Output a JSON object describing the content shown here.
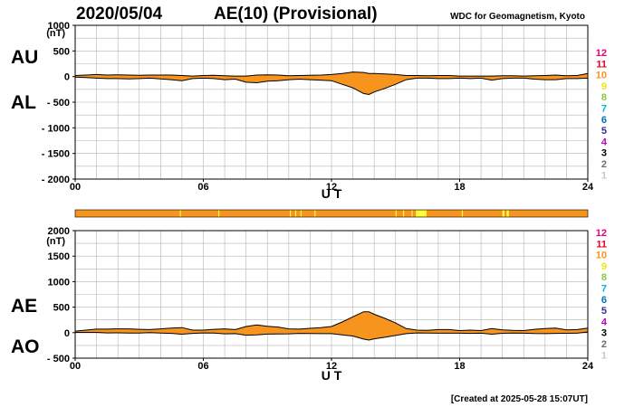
{
  "header": {
    "date": "2020/05/04",
    "title": "AE(10) (Provisional)",
    "source": "WDC for Geomagnetism, Kyoto"
  },
  "footer": {
    "created": "[Created at 2025-05-28 15:07UT]"
  },
  "colors": {
    "fill": "#f7941d",
    "outline": "#000000",
    "grid": "#b4b4b4",
    "axis": "#000000"
  },
  "station_scale": {
    "labels": [
      "12",
      "11",
      "10",
      "9",
      "8",
      "7",
      "6",
      "5",
      "4",
      "3",
      "2",
      "1"
    ],
    "colors": [
      "#e6007e",
      "#e4002b",
      "#f7941d",
      "#f5e400",
      "#8dc63f",
      "#00b4d8",
      "#0070c0",
      "#2e3192",
      "#c000c0",
      "#000000",
      "#6d6d6d",
      "#c8c8c8"
    ]
  },
  "coverage_bar": {
    "base_color": "#f7941d",
    "highlight_color": "#ffff33",
    "highlight_ranges_hours": [
      [
        4.9,
        4.95
      ],
      [
        6.7,
        6.75
      ],
      [
        10.05,
        10.1
      ],
      [
        10.3,
        10.35
      ],
      [
        10.55,
        10.6
      ],
      [
        11.2,
        11.25
      ],
      [
        15.0,
        15.05
      ],
      [
        15.35,
        15.4
      ],
      [
        15.75,
        15.8
      ],
      [
        15.95,
        16.45
      ],
      [
        18.1,
        18.15
      ],
      [
        20.0,
        20.1
      ],
      [
        20.2,
        20.3
      ]
    ]
  },
  "chart_data": [
    {
      "type": "area",
      "panel": "AU/AL",
      "ylabel_unit": "(nT)",
      "side_labels": [
        "AU",
        "AL"
      ],
      "xlabel": "U T",
      "xticks": [
        "00",
        "06",
        "12",
        "18",
        "24"
      ],
      "xlim": [
        0,
        24
      ],
      "ylim": [
        -2000,
        1000
      ],
      "yticks": [
        1000,
        500,
        0,
        -500,
        -1000,
        -1500,
        -2000
      ],
      "ytick_labels": [
        "1000",
        "500",
        "0",
        "- 500",
        "- 1000",
        "- 1500",
        "- 2000"
      ],
      "x": [
        0,
        0.5,
        1,
        1.5,
        2,
        2.5,
        3,
        3.5,
        4,
        4.5,
        5,
        5.5,
        6,
        6.5,
        7,
        7.5,
        8,
        8.5,
        9,
        9.5,
        10,
        10.5,
        11,
        11.5,
        12,
        12.5,
        13,
        13.5,
        13.75,
        14,
        14.5,
        15,
        15.5,
        16,
        16.5,
        17,
        17.5,
        18,
        18.5,
        19,
        19.5,
        20,
        20.5,
        21,
        21.5,
        22,
        22.5,
        23,
        23.5,
        24
      ],
      "series": [
        {
          "name": "AU",
          "values": [
            20,
            30,
            40,
            30,
            35,
            30,
            25,
            30,
            30,
            30,
            20,
            10,
            20,
            25,
            15,
            10,
            10,
            30,
            35,
            30,
            15,
            20,
            25,
            30,
            40,
            60,
            90,
            80,
            60,
            60,
            50,
            40,
            20,
            20,
            15,
            20,
            20,
            10,
            10,
            10,
            10,
            15,
            15,
            10,
            15,
            20,
            30,
            15,
            20,
            60
          ]
        },
        {
          "name": "AL",
          "values": [
            -10,
            -20,
            -30,
            -40,
            -40,
            -45,
            -40,
            -30,
            -45,
            -60,
            -80,
            -40,
            -30,
            -40,
            -60,
            -50,
            -110,
            -120,
            -90,
            -80,
            -60,
            -50,
            -60,
            -70,
            -80,
            -150,
            -220,
            -330,
            -350,
            -300,
            -230,
            -150,
            -60,
            -30,
            -30,
            -40,
            -40,
            -30,
            -40,
            -30,
            -70,
            -40,
            -30,
            -30,
            -50,
            -60,
            -60,
            -40,
            -40,
            -30
          ]
        }
      ]
    },
    {
      "type": "area",
      "panel": "AE/AO",
      "ylabel_unit": "(nT)",
      "side_labels": [
        "AE",
        "AO"
      ],
      "xlabel": "U T",
      "xticks": [
        "00",
        "06",
        "12",
        "18",
        "24"
      ],
      "xlim": [
        0,
        24
      ],
      "ylim": [
        -500,
        2000
      ],
      "yticks": [
        2000,
        1500,
        1000,
        500,
        0,
        -500
      ],
      "ytick_labels": [
        "2000",
        "1500",
        "1000",
        "500",
        "0",
        "- 500"
      ],
      "x": [
        0,
        0.5,
        1,
        1.5,
        2,
        2.5,
        3,
        3.5,
        4,
        4.5,
        5,
        5.5,
        6,
        6.5,
        7,
        7.5,
        8,
        8.5,
        9,
        9.5,
        10,
        10.5,
        11,
        11.5,
        12,
        12.5,
        13,
        13.5,
        13.75,
        14,
        14.5,
        15,
        15.5,
        16,
        16.5,
        17,
        17.5,
        18,
        18.5,
        19,
        19.5,
        20,
        20.5,
        21,
        21.5,
        22,
        22.5,
        23,
        23.5,
        24
      ],
      "series": [
        {
          "name": "AE",
          "values": [
            30,
            50,
            70,
            70,
            75,
            75,
            65,
            60,
            75,
            90,
            100,
            50,
            50,
            65,
            75,
            60,
            120,
            150,
            125,
            110,
            75,
            70,
            85,
            100,
            120,
            210,
            310,
            410,
            410,
            360,
            280,
            190,
            80,
            50,
            45,
            60,
            60,
            40,
            50,
            40,
            80,
            55,
            45,
            40,
            65,
            80,
            90,
            55,
            60,
            90
          ]
        },
        {
          "name": "AO",
          "values": [
            5,
            5,
            5,
            -5,
            -3,
            -8,
            -8,
            0,
            -8,
            -15,
            -30,
            -15,
            -5,
            -8,
            -23,
            -20,
            -50,
            -45,
            -28,
            -25,
            -23,
            -15,
            -18,
            -20,
            -20,
            -45,
            -65,
            -125,
            -145,
            -120,
            -90,
            -55,
            -20,
            -5,
            -8,
            -10,
            -10,
            -10,
            -15,
            -10,
            -30,
            -13,
            -8,
            -10,
            -18,
            -20,
            -15,
            -13,
            -10,
            15
          ]
        }
      ]
    }
  ]
}
